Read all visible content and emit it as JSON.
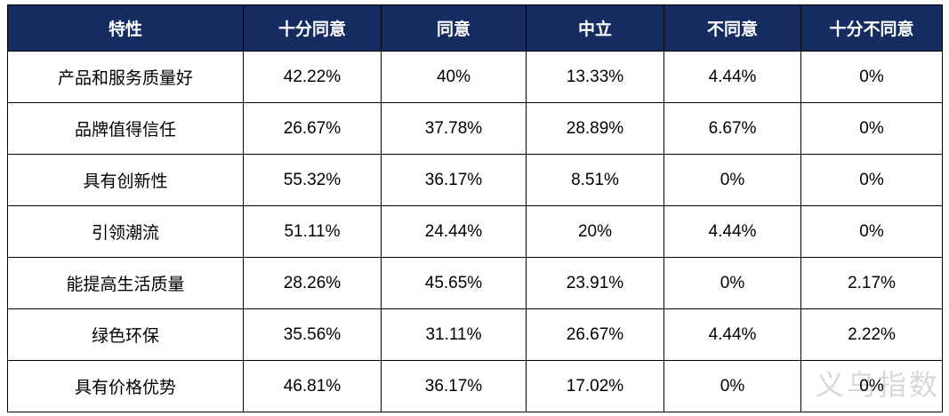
{
  "colors": {
    "header_bg": "#142C5F",
    "header_text": "#FFFFFF",
    "body_text": "#000000",
    "border": "#000000",
    "watermark": "#D8D8D8"
  },
  "table": {
    "headers": [
      "特性",
      "十分同意",
      "同意",
      "中立",
      "不同意",
      "十分不同意"
    ],
    "rows": [
      {
        "feature": "产品和服务质量好",
        "values": [
          "42.22%",
          "40%",
          "13.33%",
          "4.44%",
          "0%"
        ]
      },
      {
        "feature": "品牌值得信任",
        "values": [
          "26.67%",
          "37.78%",
          "28.89%",
          "6.67%",
          "0%"
        ]
      },
      {
        "feature": "具有创新性",
        "values": [
          "55.32%",
          "36.17%",
          "8.51%",
          "0%",
          "0%"
        ]
      },
      {
        "feature": "引领潮流",
        "values": [
          "51.11%",
          "24.44%",
          "20%",
          "4.44%",
          "0%"
        ]
      },
      {
        "feature": "能提高生活质量",
        "values": [
          "28.26%",
          "45.65%",
          "23.91%",
          "0%",
          "2.17%"
        ]
      },
      {
        "feature": "绿色环保",
        "values": [
          "35.56%",
          "31.11%",
          "26.67%",
          "4.44%",
          "2.22%"
        ]
      },
      {
        "feature": "具有价格优势",
        "values": [
          "46.81%",
          "36.17%",
          "17.02%",
          "0%",
          "0%"
        ]
      }
    ]
  },
  "watermark": {
    "text": "义乌指数"
  },
  "chart_data": {
    "type": "table",
    "title": "",
    "columns": [
      "特性",
      "十分同意",
      "同意",
      "中立",
      "不同意",
      "十分不同意"
    ],
    "categories": [
      "产品和服务质量好",
      "品牌值得信任",
      "具有创新性",
      "引领潮流",
      "能提高生活质量",
      "绿色环保",
      "具有价格优势"
    ],
    "series": [
      {
        "name": "十分同意",
        "values": [
          42.22,
          26.67,
          55.32,
          51.11,
          28.26,
          35.56,
          46.81
        ]
      },
      {
        "name": "同意",
        "values": [
          40,
          37.78,
          36.17,
          24.44,
          45.65,
          31.11,
          36.17
        ]
      },
      {
        "name": "中立",
        "values": [
          13.33,
          28.89,
          8.51,
          20,
          23.91,
          26.67,
          17.02
        ]
      },
      {
        "name": "不同意",
        "values": [
          4.44,
          6.67,
          0,
          4.44,
          0,
          4.44,
          0
        ]
      },
      {
        "name": "十分不同意",
        "values": [
          0,
          0,
          0,
          0,
          2.17,
          2.22,
          0
        ]
      }
    ],
    "value_unit": "%",
    "annotations": [
      "义乌指数"
    ]
  }
}
